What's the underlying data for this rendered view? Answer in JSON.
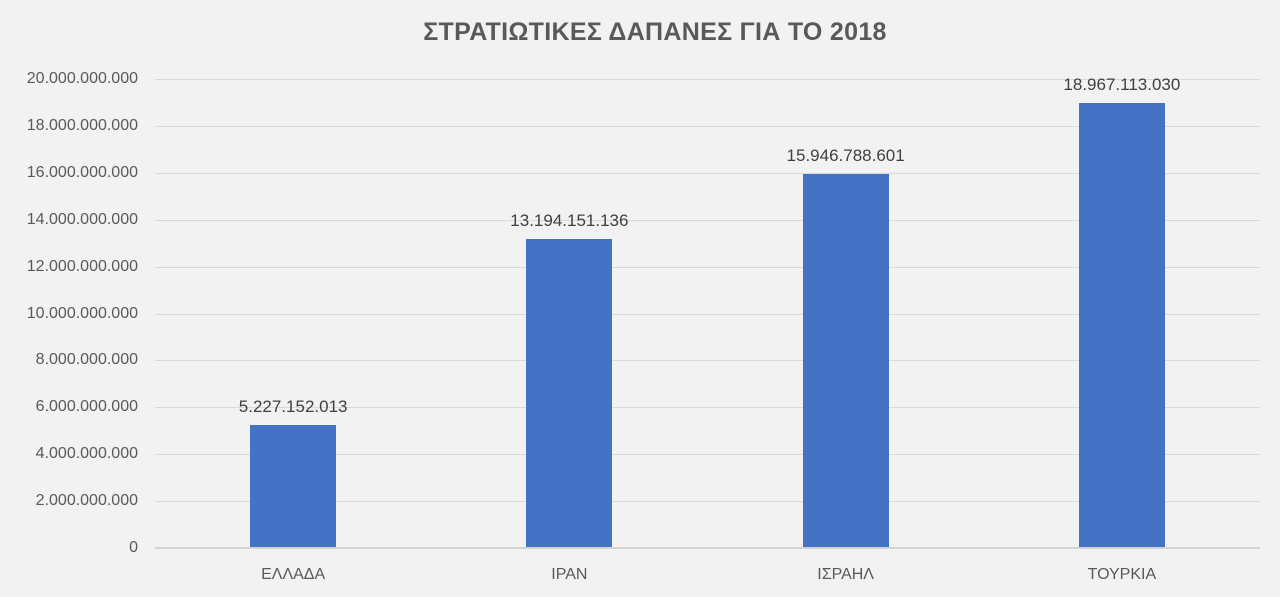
{
  "chart_data": {
    "type": "bar",
    "title": "ΣΤΡΑΤΙΩΤΙΚΕΣ ΔΑΠΑΝΕΣ ΓΙΑ ΤΟ 2018",
    "xlabel": "",
    "ylabel": "",
    "categories": [
      "ΕΛΛΑΔΑ",
      "ΙΡΑΝ",
      "ΙΣΡΑΗΛ",
      "ΤΟΥΡΚΙΑ"
    ],
    "values": [
      5227152013,
      13194151136,
      15946788601,
      18967113030
    ],
    "value_labels": [
      "5.227.152.013",
      "13.194.151.136",
      "15.946.788.601",
      "18.967.113.030"
    ],
    "ylim": [
      0,
      20000000000
    ],
    "yticks": [
      0,
      2000000000,
      4000000000,
      6000000000,
      8000000000,
      10000000000,
      12000000000,
      14000000000,
      16000000000,
      18000000000,
      20000000000
    ],
    "ytick_labels": [
      "0",
      "2.000.000.000",
      "4.000.000.000",
      "6.000.000.000",
      "8.000.000.000",
      "10.000.000.000",
      "12.000.000.000",
      "14.000.000.000",
      "16.000.000.000",
      "18.000.000.000",
      "20.000.000.000"
    ],
    "grid": true,
    "legend": null,
    "bar_color": "#4472c4"
  }
}
